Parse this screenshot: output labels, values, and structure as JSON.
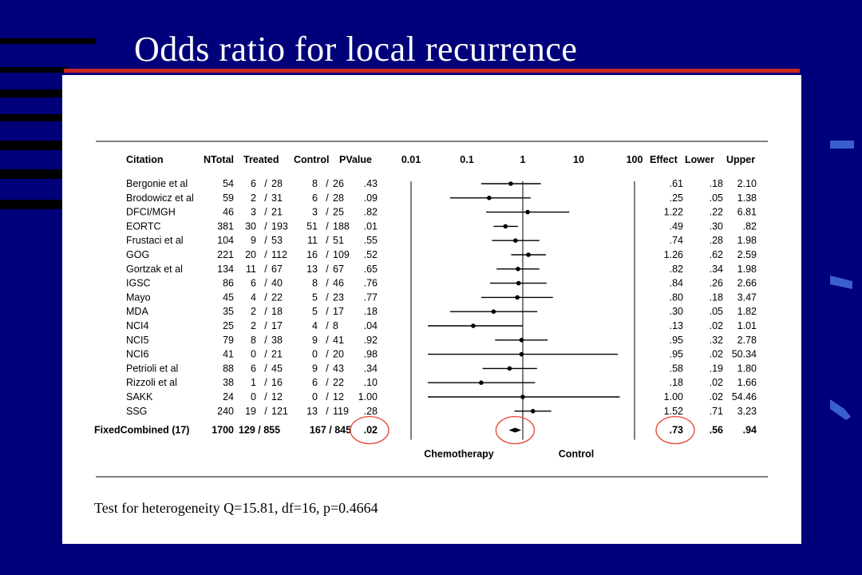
{
  "title": "Odds ratio for local recurrence",
  "footnote": "Test for heterogeneity Q=15.81, df=16, p=0.4664",
  "colors": {
    "background": "#00007a",
    "title_rule": "#c8281e",
    "panel": "#ffffff",
    "highlight_circle": "#e8503c"
  },
  "chart_data": {
    "type": "forest",
    "scale": "log",
    "xlim": [
      0.01,
      100
    ],
    "reference_line": 1,
    "header": {
      "citation": "Citation",
      "ntotal": "NTotal",
      "treated": "Treated",
      "control": "Control",
      "pvalue": "PValue",
      "effect": "Effect",
      "lower": "Lower",
      "upper": "Upper"
    },
    "ticks": [
      {
        "value": 0.01,
        "label": "0.01"
      },
      {
        "value": 0.1,
        "label": "0.1"
      },
      {
        "value": 1,
        "label": "1"
      },
      {
        "value": 10,
        "label": "10"
      },
      {
        "value": 100,
        "label": "100"
      }
    ],
    "studies": [
      {
        "citation": "Bergonie et al",
        "ntotal": "54",
        "treated": "6 / 28",
        "control": "8 / 26",
        "pvalue": ".43",
        "effect_label": ".61",
        "lower_label": ".18",
        "upper_label": "2.10",
        "effect": 0.61,
        "lower": 0.18,
        "upper": 2.1
      },
      {
        "citation": "Brodowicz et al",
        "ntotal": "59",
        "treated": "2 / 31",
        "control": "6 / 28",
        "pvalue": ".09",
        "effect_label": ".25",
        "lower_label": ".05",
        "upper_label": "1.38",
        "effect": 0.25,
        "lower": 0.05,
        "upper": 1.38
      },
      {
        "citation": "DFCI/MGH",
        "ntotal": "46",
        "treated": "3 / 21",
        "control": "3 / 25",
        "pvalue": ".82",
        "effect_label": "1.22",
        "lower_label": ".22",
        "upper_label": "6.81",
        "effect": 1.22,
        "lower": 0.22,
        "upper": 6.81
      },
      {
        "citation": "EORTC",
        "ntotal": "381",
        "treated": "30 / 193",
        "control": "51 / 188",
        "pvalue": ".01",
        "effect_label": ".49",
        "lower_label": ".30",
        "upper_label": ".82",
        "effect": 0.49,
        "lower": 0.3,
        "upper": 0.82
      },
      {
        "citation": "Frustaci  et al",
        "ntotal": "104",
        "treated": "9 / 53",
        "control": "11 / 51",
        "pvalue": ".55",
        "effect_label": ".74",
        "lower_label": ".28",
        "upper_label": "1.98",
        "effect": 0.74,
        "lower": 0.28,
        "upper": 1.98
      },
      {
        "citation": "GOG",
        "ntotal": "221",
        "treated": "20 / 112",
        "control": "16 / 109",
        "pvalue": ".52",
        "effect_label": "1.26",
        "lower_label": ".62",
        "upper_label": "2.59",
        "effect": 1.26,
        "lower": 0.62,
        "upper": 2.59
      },
      {
        "citation": "Gortzak et al",
        "ntotal": "134",
        "treated": "11 / 67",
        "control": "13 / 67",
        "pvalue": ".65",
        "effect_label": ".82",
        "lower_label": ".34",
        "upper_label": "1.98",
        "effect": 0.82,
        "lower": 0.34,
        "upper": 1.98
      },
      {
        "citation": "IGSC",
        "ntotal": "86",
        "treated": "6 / 40",
        "control": "8 / 46",
        "pvalue": ".76",
        "effect_label": ".84",
        "lower_label": ".26",
        "upper_label": "2.66",
        "effect": 0.84,
        "lower": 0.26,
        "upper": 2.66
      },
      {
        "citation": "Mayo",
        "ntotal": "45",
        "treated": "4 / 22",
        "control": "5 / 23",
        "pvalue": ".77",
        "effect_label": ".80",
        "lower_label": ".18",
        "upper_label": "3.47",
        "effect": 0.8,
        "lower": 0.18,
        "upper": 3.47
      },
      {
        "citation": "MDA",
        "ntotal": "35",
        "treated": "2 / 18",
        "control": "5 / 17",
        "pvalue": ".18",
        "effect_label": ".30",
        "lower_label": ".05",
        "upper_label": "1.82",
        "effect": 0.3,
        "lower": 0.05,
        "upper": 1.82
      },
      {
        "citation": "NCI4",
        "ntotal": "25",
        "treated": "2 / 17",
        "control": "4 / 8",
        "pvalue": ".04",
        "effect_label": ".13",
        "lower_label": ".02",
        "upper_label": "1.01",
        "effect": 0.13,
        "lower": 0.02,
        "upper": 1.01
      },
      {
        "citation": "NCI5",
        "ntotal": "79",
        "treated": "8 / 38",
        "control": "9 / 41",
        "pvalue": ".92",
        "effect_label": ".95",
        "lower_label": ".32",
        "upper_label": "2.78",
        "effect": 0.95,
        "lower": 0.32,
        "upper": 2.78
      },
      {
        "citation": "NCI6",
        "ntotal": "41",
        "treated": "0 / 21",
        "control": "0 / 20",
        "pvalue": ".98",
        "effect_label": ".95",
        "lower_label": ".02",
        "upper_label": "50.34",
        "effect": 0.95,
        "lower": 0.02,
        "upper": 50.34
      },
      {
        "citation": "Petrioli et al",
        "ntotal": "88",
        "treated": "6 / 45",
        "control": "9 / 43",
        "pvalue": ".34",
        "effect_label": ".58",
        "lower_label": ".19",
        "upper_label": "1.80",
        "effect": 0.58,
        "lower": 0.19,
        "upper": 1.8
      },
      {
        "citation": "Rizzoli et al",
        "ntotal": "38",
        "treated": "1 / 16",
        "control": "6 / 22",
        "pvalue": ".10",
        "effect_label": ".18",
        "lower_label": ".02",
        "upper_label": "1.66",
        "effect": 0.18,
        "lower": 0.02,
        "upper": 1.66
      },
      {
        "citation": "SAKK",
        "ntotal": "24",
        "treated": "0 / 12",
        "control": "0 / 12",
        "pvalue": "1.00",
        "effect_label": "1.00",
        "lower_label": ".02",
        "upper_label": "54.46",
        "effect": 1.0,
        "lower": 0.02,
        "upper": 54.46
      },
      {
        "citation": "SSG",
        "ntotal": "240",
        "treated": "19 / 121",
        "control": "13 / 119",
        "pvalue": ".28",
        "effect_label": "1.52",
        "lower_label": ".71",
        "upper_label": "3.23",
        "effect": 1.52,
        "lower": 0.71,
        "upper": 3.23
      }
    ],
    "combined": {
      "label": "FixedCombined (17)",
      "ntotal": "1700",
      "treated": "129 / 855",
      "control": "167 / 845",
      "pvalue": ".02",
      "effect_label": ".73",
      "lower_label": ".56",
      "upper_label": ".94",
      "effect": 0.73,
      "lower": 0.56,
      "upper": 0.94
    },
    "favours": {
      "left": "Chemotherapy",
      "right": "Control"
    }
  }
}
